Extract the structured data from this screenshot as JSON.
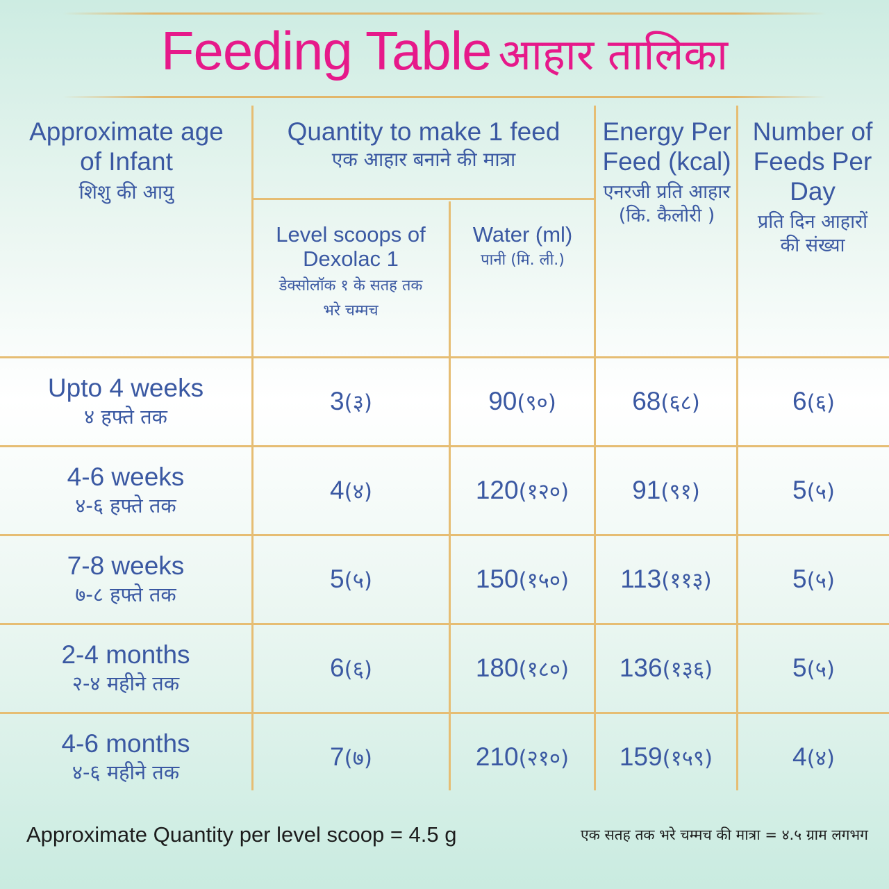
{
  "title": {
    "en": "Feeding Table",
    "hi": "आहार तालिका"
  },
  "headers": {
    "age": {
      "en": "Approximate age of Infant",
      "hi": "शिशु की आयु"
    },
    "quantity": {
      "en": "Quantity to make 1 feed",
      "hi": "एक आहार बनाने की मात्रा"
    },
    "scoops": {
      "en": "Level scoops of Dexolac 1",
      "hi": "डेक्सोलॉक १ के सतह तक भरे चम्मच"
    },
    "water": {
      "en": "Water (ml)",
      "hi": "पानी (मि. ली.)"
    },
    "energy": {
      "en": "Energy Per Feed (kcal)",
      "hi": "एनरजी प्रति आहार (कि. कैलोरी )"
    },
    "feeds": {
      "en": "Number of Feeds Per Day",
      "hi": "प्रति दिन आहारों की संख्या"
    }
  },
  "rows": [
    {
      "age_en": "Upto 4 weeks",
      "age_hi": "४ हफ्ते तक",
      "scoops": "3",
      "scoops_hi": "(३)",
      "water": "90",
      "water_hi": "(९०)",
      "energy": "68",
      "energy_hi": "(६८)",
      "feeds": "6",
      "feeds_hi": "(६)"
    },
    {
      "age_en": "4-6 weeks",
      "age_hi": "४-६ हफ्ते तक",
      "scoops": "4",
      "scoops_hi": "(४)",
      "water": "120",
      "water_hi": "(१२०)",
      "energy": "91",
      "energy_hi": "(९१)",
      "feeds": "5",
      "feeds_hi": "(५)"
    },
    {
      "age_en": "7-8 weeks",
      "age_hi": "७-८ हफ्ते तक",
      "scoops": "5",
      "scoops_hi": "(५)",
      "water": "150",
      "water_hi": "(१५०)",
      "energy": "113",
      "energy_hi": "(११३)",
      "feeds": "5",
      "feeds_hi": "(५)"
    },
    {
      "age_en": "2-4 months",
      "age_hi": "२-४ महीने तक",
      "scoops": "6",
      "scoops_hi": "(६)",
      "water": "180",
      "water_hi": "(१८०)",
      "energy": "136",
      "energy_hi": "(१३६)",
      "feeds": "5",
      "feeds_hi": "(५)"
    },
    {
      "age_en": "4-6 months",
      "age_hi": "४-६ महीने तक",
      "scoops": "7",
      "scoops_hi": "(७)",
      "water": "210",
      "water_hi": "(२१०)",
      "energy": "159",
      "energy_hi": "(१५९)",
      "feeds": "4",
      "feeds_hi": "(४)"
    }
  ],
  "footer": {
    "en": "Approximate Quantity per level scoop = 4.5 g",
    "hi": "एक सतह तक भरे चम्मच की मात्रा = ४.५ ग्राम लगभग"
  },
  "colors": {
    "title": "#e6198a",
    "text": "#3a58a2",
    "rule": "#e6bd73"
  }
}
